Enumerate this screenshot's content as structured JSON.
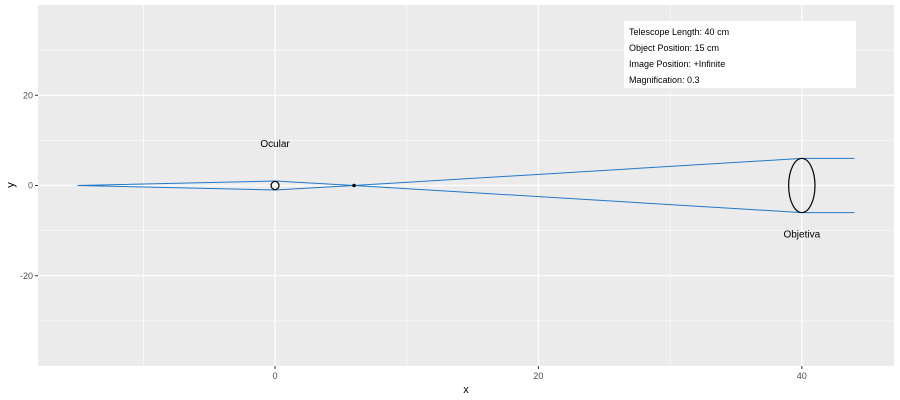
{
  "chart_data": {
    "type": "line",
    "xlabel": "x",
    "ylabel": "y",
    "xlim": [
      -18,
      47
    ],
    "ylim": [
      -40,
      40
    ],
    "x_ticks": [
      0,
      20,
      40
    ],
    "y_ticks": [
      -20,
      0,
      20
    ],
    "grid": true,
    "colors": {
      "panel": "#ebebeb",
      "grid": "#ffffff",
      "ray": "#1f78c8",
      "lens": "#000000",
      "tick": "#4d4d4d"
    },
    "series": [
      {
        "values": [
          {
            "x": -15,
            "y": 0
          },
          {
            "x": 0,
            "y": 1
          },
          {
            "x": 6,
            "y": 0
          },
          {
            "x": 40,
            "y": 6
          },
          {
            "x": 44,
            "y": 6
          }
        ]
      },
      {
        "values": [
          {
            "x": -15,
            "y": 0
          },
          {
            "x": 0,
            "y": -1
          },
          {
            "x": 6,
            "y": 0
          },
          {
            "x": 40,
            "y": -6
          },
          {
            "x": 44,
            "y": -6
          }
        ]
      }
    ],
    "lenses": [
      {
        "name": "Ocular",
        "cx": 0,
        "rx": 0.3,
        "ry": 0.9,
        "label_y": 8.5
      },
      {
        "name": "Objetiva",
        "cx": 40,
        "rx": 1.0,
        "ry": 6.0,
        "label_y": -11.5
      }
    ],
    "focal_point": {
      "x": 6,
      "y": 0
    },
    "info_box": [
      "Telescope Length: 40 cm",
      "Object Position: 15 cm",
      "Image Position: +Infinite",
      "Magnification: 0.3"
    ]
  }
}
